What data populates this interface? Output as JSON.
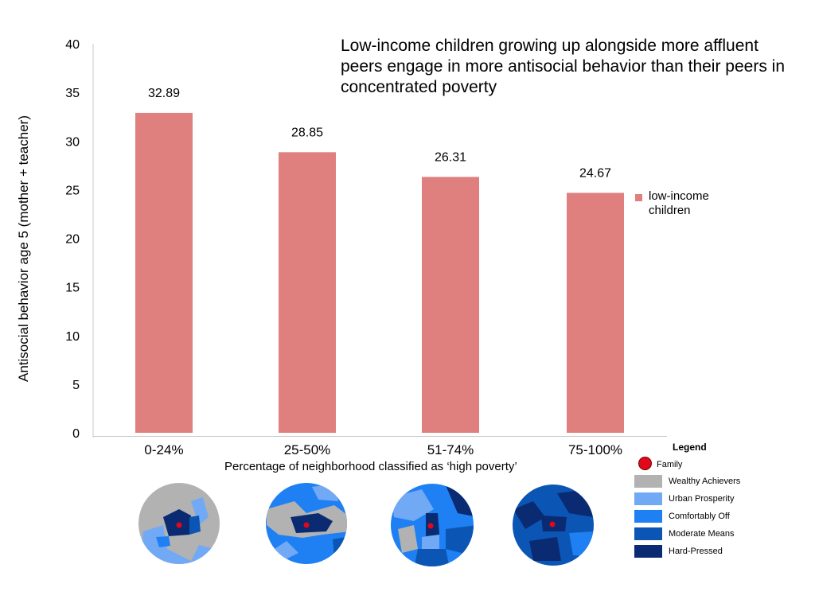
{
  "chart_data": {
    "type": "bar",
    "title": "Low-income children growing up alongside more affluent peers engage in more antisocial behavior than their peers in concentrated poverty",
    "xlabel": "Percentage of neighborhood classified as ‘high poverty’",
    "ylabel": "Antisocial behavior age 5 (mother + teacher)",
    "categories": [
      "0-24%",
      "25-50%",
      "51-74%",
      "75-100%"
    ],
    "series": [
      {
        "name": "low-income children",
        "values": [
          32.89,
          28.85,
          26.31,
          24.67
        ],
        "labels": [
          "32.89",
          "28.85",
          "26.31",
          "24.67"
        ],
        "color": "#df7f7e"
      }
    ],
    "ylim": [
      0,
      40
    ],
    "yticks": [
      "0",
      "5",
      "10",
      "15",
      "20",
      "25",
      "30",
      "35",
      "40"
    ],
    "grid": false,
    "legend_position": "right"
  },
  "map_legend": {
    "heading": "Legend",
    "family_label": "Family",
    "family_color": "#e0081a",
    "items": [
      {
        "label": "Wealthy Achievers",
        "color": "#b2b2b2"
      },
      {
        "label": "Urban Prosperity",
        "color": "#72a9f5"
      },
      {
        "label": "Comfortably Off",
        "color": "#1e80f2"
      },
      {
        "label": "Moderate Means",
        "color": "#0b55b4"
      },
      {
        "label": "Hard-Pressed",
        "color": "#0a2a72"
      }
    ]
  }
}
